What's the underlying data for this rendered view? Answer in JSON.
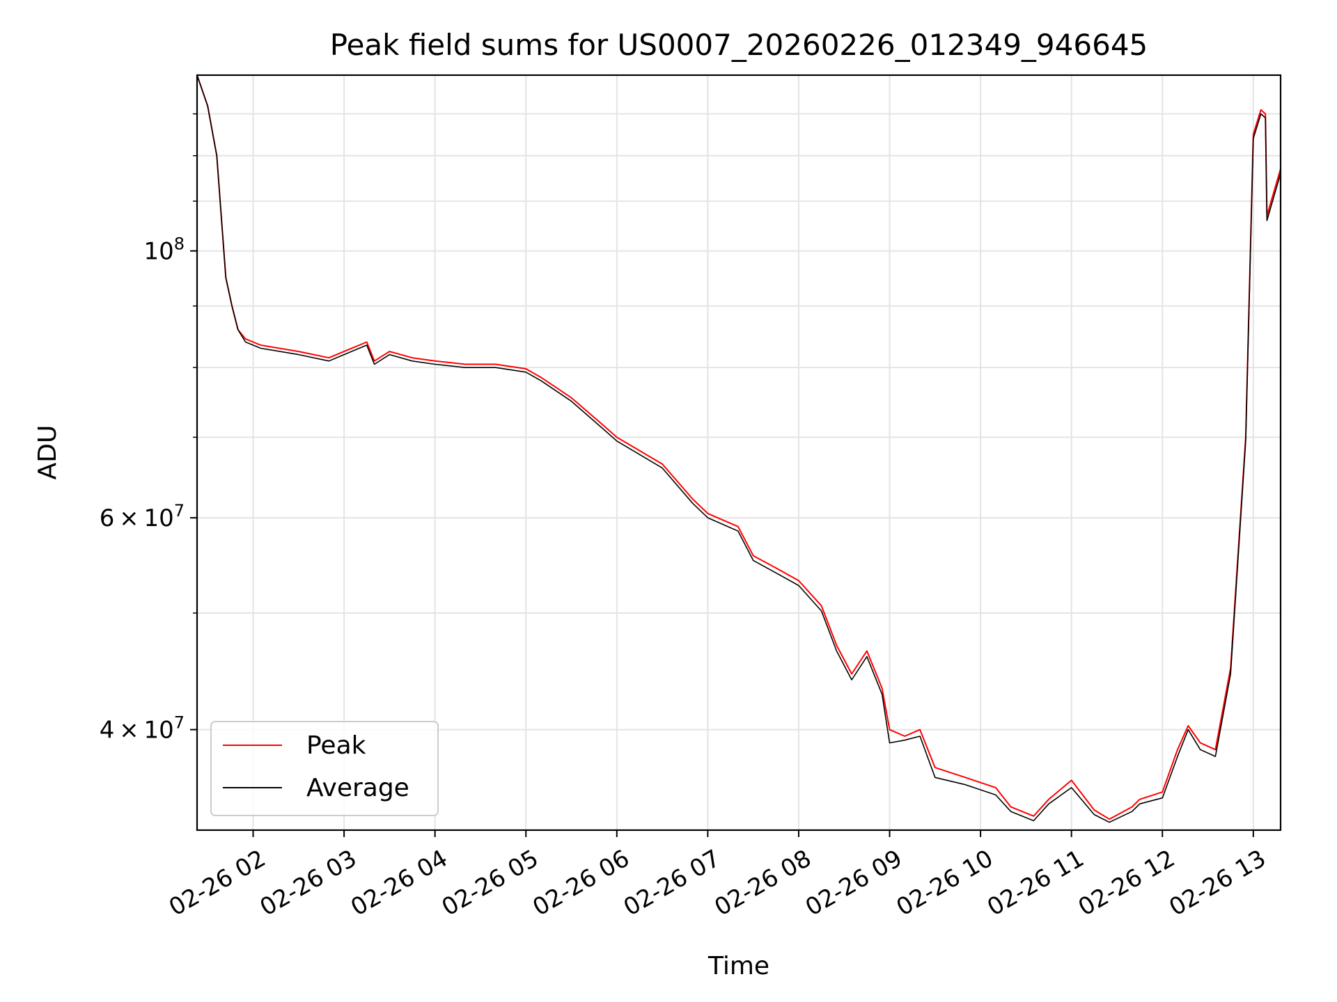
{
  "chart_data": {
    "type": "line",
    "title": "Peak field sums for US0007_20260226_012349_946645",
    "xlabel": "Time",
    "ylabel": "ADU",
    "yscale": "log",
    "ylim": [
      33000000,
      140000000
    ],
    "xlim": [
      "2026-02-26 01:23",
      "2026-02-26 13:18"
    ],
    "x_ticks": [
      "02-26 02",
      "02-26 03",
      "02-26 04",
      "02-26 05",
      "02-26 06",
      "02-26 07",
      "02-26 08",
      "02-26 09",
      "02-26 10",
      "02-26 11",
      "02-26 12",
      "02-26 13"
    ],
    "y_ticks": [
      {
        "value": 100000000,
        "base": "10",
        "exp": "8"
      },
      {
        "value": 60000000,
        "mant": "6",
        "base": "10",
        "exp": "7"
      },
      {
        "value": 40000000,
        "mant": "4",
        "base": "10",
        "exp": "7"
      }
    ],
    "grid": true,
    "legend": "lower-left",
    "x": [
      "2026-02-26 01:23",
      "2026-02-26 01:30",
      "2026-02-26 01:36",
      "2026-02-26 01:42",
      "2026-02-26 01:46",
      "2026-02-26 01:50",
      "2026-02-26 01:55",
      "2026-02-26 02:05",
      "2026-02-26 02:30",
      "2026-02-26 02:50",
      "2026-02-26 03:00",
      "2026-02-26 03:15",
      "2026-02-26 03:20",
      "2026-02-26 03:30",
      "2026-02-26 03:45",
      "2026-02-26 04:00",
      "2026-02-26 04:20",
      "2026-02-26 04:40",
      "2026-02-26 05:00",
      "2026-02-26 05:10",
      "2026-02-26 05:30",
      "2026-02-26 05:50",
      "2026-02-26 06:00",
      "2026-02-26 06:30",
      "2026-02-26 06:50",
      "2026-02-26 07:00",
      "2026-02-26 07:20",
      "2026-02-26 07:30",
      "2026-02-26 07:45",
      "2026-02-26 08:00",
      "2026-02-26 08:15",
      "2026-02-26 08:25",
      "2026-02-26 08:35",
      "2026-02-26 08:45",
      "2026-02-26 08:55",
      "2026-02-26 09:00",
      "2026-02-26 09:10",
      "2026-02-26 09:20",
      "2026-02-26 09:30",
      "2026-02-26 09:50",
      "2026-02-26 10:10",
      "2026-02-26 10:20",
      "2026-02-26 10:35",
      "2026-02-26 10:45",
      "2026-02-26 11:00",
      "2026-02-26 11:15",
      "2026-02-26 11:25",
      "2026-02-26 11:40",
      "2026-02-26 11:45",
      "2026-02-26 12:00",
      "2026-02-26 12:10",
      "2026-02-26 12:17",
      "2026-02-26 12:25",
      "2026-02-26 12:35",
      "2026-02-26 12:45",
      "2026-02-26 12:55",
      "2026-02-26 13:00",
      "2026-02-26 13:05",
      "2026-02-26 13:08",
      "2026-02-26 13:09",
      "2026-02-26 13:18"
    ],
    "series": [
      {
        "name": "Peak",
        "color": "#ff0000",
        "values": [
          140000000,
          132000000,
          120000000,
          95000000,
          90000000,
          86000000,
          84500000,
          83500000,
          82500000,
          81500000,
          82500000,
          84000000,
          81000000,
          82500000,
          81500000,
          81000000,
          80500000,
          80500000,
          79800000,
          78500000,
          75500000,
          71800000,
          70000000,
          66500000,
          62200000,
          60500000,
          59000000,
          55800000,
          54500000,
          53200000,
          50700000,
          47000000,
          44500000,
          46500000,
          43300000,
          40000000,
          39500000,
          40000000,
          37200000,
          36500000,
          35800000,
          34500000,
          33900000,
          35000000,
          36300000,
          34300000,
          33700000,
          34500000,
          35000000,
          35500000,
          38500000,
          40300000,
          39000000,
          38500000,
          45000000,
          70000000,
          125000000,
          131000000,
          130000000,
          107000000,
          117000000
        ]
      },
      {
        "name": "Average",
        "color": "#000000",
        "values": [
          140000000,
          132000000,
          120000000,
          95000000,
          90000000,
          86000000,
          84000000,
          83000000,
          82000000,
          81000000,
          82000000,
          83500000,
          80500000,
          82000000,
          81000000,
          80500000,
          80000000,
          80000000,
          79300000,
          78000000,
          75000000,
          71300000,
          69500000,
          66000000,
          61700000,
          60000000,
          58500000,
          55300000,
          54000000,
          52700000,
          50200000,
          46500000,
          44000000,
          46000000,
          42800000,
          39000000,
          39200000,
          39500000,
          36500000,
          36000000,
          35300000,
          34200000,
          33600000,
          34700000,
          35800000,
          34000000,
          33500000,
          34200000,
          34700000,
          35100000,
          38000000,
          40000000,
          38500000,
          38000000,
          44500000,
          69500000,
          124000000,
          130000000,
          129000000,
          106000000,
          116000000
        ]
      }
    ]
  }
}
